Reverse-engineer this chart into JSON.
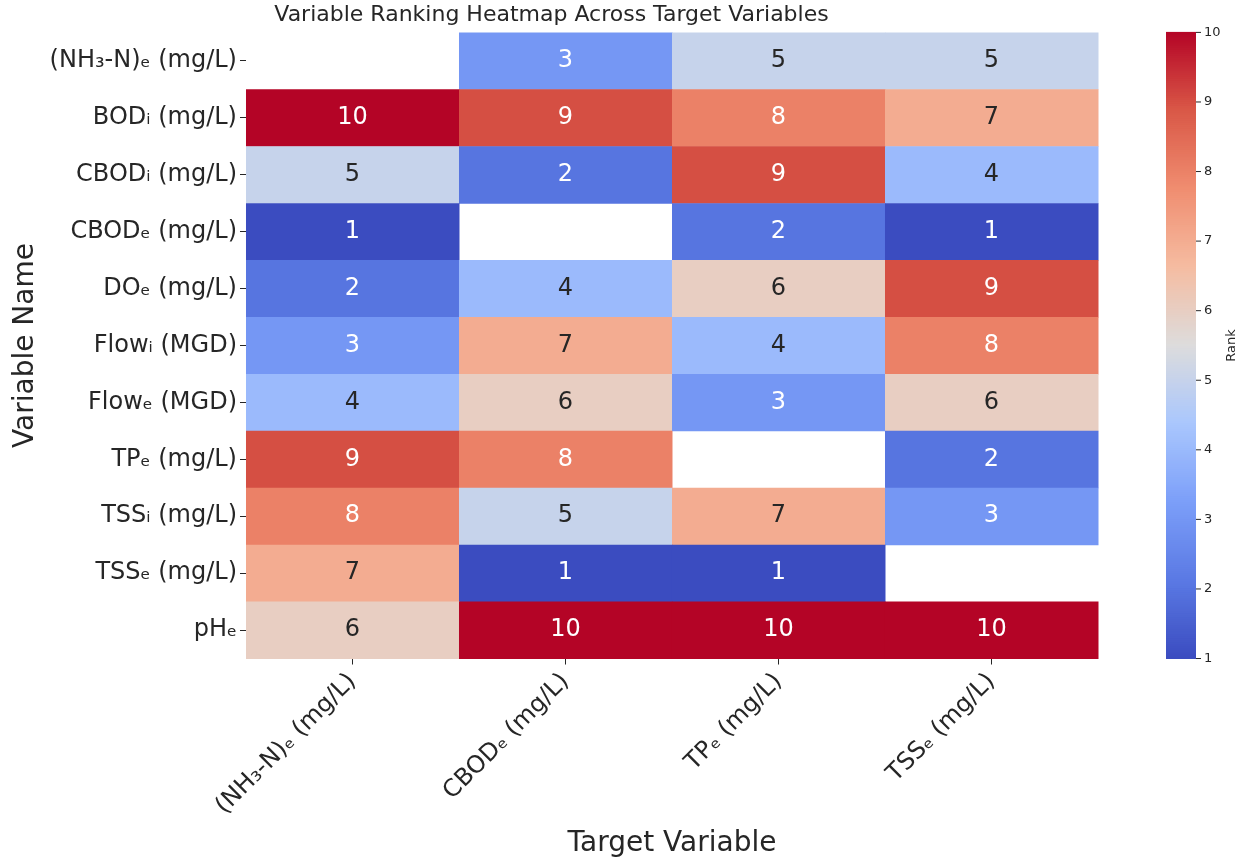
{
  "chart_data": {
    "type": "heatmap",
    "title": "Variable Ranking Heatmap Across Target Variables",
    "xlabel": "Target Variable",
    "ylabel": "Variable Name",
    "clabel": "Rank",
    "categories": [
      "(NH₃-N)ₑ (mg/L)",
      "CBODₑ (mg/L)",
      "TPₑ (mg/L)",
      "TSSₑ (mg/L)"
    ],
    "y_categories": [
      "(NH₃-N)ₑ (mg/L)",
      "BODᵢ (mg/L)",
      "CBODᵢ (mg/L)",
      "CBODₑ (mg/L)",
      "DOₑ (mg/L)",
      "Flowᵢ (MGD)",
      "Flowₑ (MGD)",
      "TPₑ (mg/L)",
      "TSSᵢ (mg/L)",
      "TSSₑ (mg/L)",
      "pHₑ"
    ],
    "cells": [
      [
        null,
        3,
        5,
        5
      ],
      [
        10,
        9,
        8,
        7
      ],
      [
        5,
        2,
        9,
        4
      ],
      [
        1,
        null,
        2,
        1
      ],
      [
        2,
        4,
        6,
        9
      ],
      [
        3,
        7,
        4,
        8
      ],
      [
        4,
        6,
        3,
        6
      ],
      [
        9,
        8,
        null,
        2
      ],
      [
        8,
        5,
        7,
        3
      ],
      [
        7,
        1,
        1,
        null
      ],
      [
        6,
        10,
        10,
        10
      ]
    ],
    "clim": [
      1,
      10
    ],
    "cticks": [
      1,
      2,
      3,
      4,
      5,
      6,
      7,
      8,
      9,
      10
    ],
    "data_labels": true
  }
}
